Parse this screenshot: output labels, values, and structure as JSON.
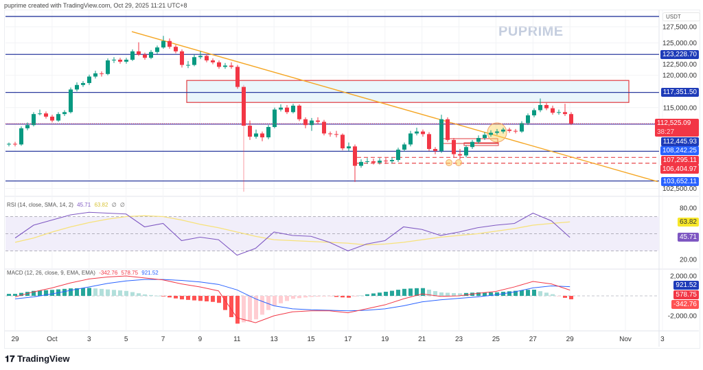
{
  "header": {
    "caption": "puprime created with TradingView.com, Oct 29, 2025 11:21 UTC+8"
  },
  "watermark": "PUPRIME",
  "footer": {
    "logo_text": "TradingView"
  },
  "price_axis": {
    "currency": "USDT",
    "ticks": [
      "127,500.00",
      "125,000.00",
      "122,500.00",
      "120,000.00",
      "115,000.00",
      "102,500.00"
    ]
  },
  "colors": {
    "up": "#089981",
    "down": "#f23645",
    "level": "#2a3a9e",
    "trendline": "#f5a623",
    "zone_border": "#e0393e",
    "zone_fill": "#eaf6fb",
    "rsi": "#7e57c2",
    "rsi_ma": "#f7e27a",
    "macd": "#f23645",
    "signal": "#2962ff"
  },
  "chart_data": [
    {
      "type": "candlestick",
      "title": "",
      "y_unit": "USDT",
      "ylim": [
        101500,
        129500
      ],
      "x_tick_labels": [
        "29",
        "Oct",
        "3",
        "5",
        "7",
        "9",
        "11",
        "13",
        "15",
        "17",
        "19",
        "21",
        "23",
        "25",
        "27",
        "29",
        "Nov",
        "3"
      ],
      "y_tick_labels": [
        "127,500.00",
        "125,000.00",
        "122,500.00",
        "120,000.00",
        "115,000.00",
        "102,500.00"
      ],
      "grid": true,
      "candles_ohlc": [
        [
          109300,
          109600,
          109000,
          109400
        ],
        [
          109400,
          109700,
          109000,
          109300
        ],
        [
          109300,
          112100,
          109100,
          111800
        ],
        [
          111800,
          112700,
          111500,
          112300
        ],
        [
          112300,
          114300,
          112100,
          114000
        ],
        [
          114000,
          114700,
          113800,
          114100
        ],
        [
          114100,
          114400,
          113300,
          113600
        ],
        [
          113600,
          113900,
          112700,
          113000
        ],
        [
          113000,
          114300,
          112800,
          114000
        ],
        [
          114000,
          114600,
          113700,
          114300
        ],
        [
          114300,
          118100,
          114100,
          117800
        ],
        [
          117800,
          118900,
          117500,
          118500
        ],
        [
          118500,
          119100,
          118200,
          118800
        ],
        [
          118800,
          120100,
          118500,
          119800
        ],
        [
          119800,
          120700,
          119500,
          120300
        ],
        [
          120300,
          120600,
          119800,
          120200
        ],
        [
          120200,
          122600,
          120000,
          122300
        ],
        [
          122300,
          122800,
          121900,
          122400
        ],
        [
          122400,
          122700,
          121800,
          122100
        ],
        [
          122100,
          122700,
          121800,
          122400
        ],
        [
          122400,
          124000,
          122200,
          123700
        ],
        [
          123700,
          125100,
          123000,
          123200
        ],
        [
          123200,
          123500,
          122400,
          122700
        ],
        [
          122700,
          123900,
          122500,
          123600
        ],
        [
          123600,
          124600,
          123300,
          124300
        ],
        [
          124300,
          126100,
          124100,
          125300
        ],
        [
          125300,
          125700,
          124100,
          124400
        ],
        [
          124400,
          124700,
          123400,
          123700
        ],
        [
          123700,
          124000,
          121200,
          121600
        ],
        [
          121600,
          122200,
          121100,
          121600
        ],
        [
          121600,
          123200,
          121400,
          122800
        ],
        [
          122800,
          123700,
          122500,
          123000
        ],
        [
          123000,
          123300,
          122000,
          122300
        ],
        [
          122300,
          122600,
          121700,
          122000
        ],
        [
          122000,
          122300,
          121000,
          121300
        ],
        [
          121300,
          121900,
          121000,
          121500
        ],
        [
          121500,
          122000,
          121000,
          121300
        ],
        [
          121300,
          121600,
          117900,
          118200
        ],
        [
          118200,
          118500,
          102000,
          112200
        ],
        [
          112200,
          113000,
          110000,
          110500
        ],
        [
          110500,
          111600,
          110200,
          111000
        ],
        [
          111000,
          111300,
          109800,
          110400
        ],
        [
          110400,
          112300,
          110100,
          112000
        ],
        [
          112000,
          115000,
          111800,
          114700
        ],
        [
          114700,
          115500,
          114400,
          115000
        ],
        [
          115000,
          115400,
          114000,
          114300
        ],
        [
          114300,
          115600,
          114100,
          115300
        ],
        [
          115300,
          115500,
          112900,
          113200
        ],
        [
          113200,
          113500,
          111800,
          112300
        ],
        [
          112300,
          113400,
          111400,
          113000
        ],
        [
          113000,
          113500,
          112500,
          112800
        ],
        [
          112800,
          113100,
          110700,
          111000
        ],
        [
          111000,
          111300,
          110500,
          110900
        ],
        [
          110900,
          111400,
          110400,
          110800
        ],
        [
          110800,
          111000,
          108400,
          108700
        ],
        [
          108700,
          109600,
          108300,
          109000
        ],
        [
          109000,
          109300,
          103500,
          106000
        ],
        [
          106000,
          107000,
          105700,
          106600
        ],
        [
          106600,
          107200,
          106300,
          106700
        ],
        [
          106700,
          107100,
          106200,
          106500
        ],
        [
          106500,
          107200,
          106200,
          106800
        ],
        [
          106800,
          107200,
          106300,
          106700
        ],
        [
          106700,
          107300,
          106400,
          106900
        ],
        [
          106900,
          108800,
          106600,
          108500
        ],
        [
          108500,
          109600,
          108200,
          109300
        ],
        [
          109300,
          111400,
          109000,
          111000
        ],
        [
          111000,
          111900,
          110700,
          111300
        ],
        [
          111300,
          111600,
          110500,
          110900
        ],
        [
          110900,
          111200,
          108300,
          108600
        ],
        [
          108600,
          108900,
          107800,
          108300
        ],
        [
          108300,
          113900,
          108000,
          113200
        ],
        [
          113200,
          113500,
          109700,
          110000
        ],
        [
          110000,
          110300,
          107300,
          107800
        ],
        [
          107800,
          108600,
          107000,
          107600
        ],
        [
          107600,
          109200,
          107300,
          108900
        ],
        [
          108900,
          110000,
          108600,
          109700
        ],
        [
          109700,
          110700,
          109400,
          110300
        ],
        [
          110300,
          111200,
          110000,
          110800
        ],
        [
          110800,
          111500,
          110500,
          111100
        ],
        [
          111100,
          111700,
          110800,
          111300
        ],
        [
          111300,
          111900,
          111000,
          111600
        ],
        [
          111600,
          111900,
          111100,
          111400
        ],
        [
          111400,
          111700,
          111000,
          111300
        ],
        [
          111300,
          112900,
          111100,
          112600
        ],
        [
          112600,
          114100,
          112300,
          113800
        ],
        [
          113800,
          114900,
          113500,
          114600
        ],
        [
          114600,
          116400,
          114300,
          115400
        ],
        [
          115400,
          115700,
          114600,
          114900
        ],
        [
          114900,
          115300,
          113900,
          114200
        ],
        [
          114200,
          114700,
          113900,
          114300
        ],
        [
          114300,
          115600,
          113700,
          114000
        ],
        [
          114000,
          114300,
          112300,
          112525.09
        ]
      ],
      "horizontal_levels": [
        {
          "price": 129100,
          "label": ""
        },
        {
          "price": 123228.7,
          "label": "123,228.70"
        },
        {
          "price": 117351.5,
          "label": "117,351.50"
        },
        {
          "price": 112445.93,
          "label": "112,445.93"
        },
        {
          "price": 108242.25,
          "label": "108,242.25"
        },
        {
          "price": 103652.11,
          "label": "103,652.11"
        }
      ],
      "dashed_levels": [
        {
          "price": 107295.11,
          "label": "107,295.11"
        },
        {
          "price": 106404.97,
          "label": "106,404.97"
        }
      ],
      "last_price": {
        "value": "112,525.09",
        "countdown": "38:27"
      },
      "resistance_zone": {
        "from_price": 115800,
        "to_price": 119200,
        "start_date": "Oct 9",
        "end_date": "Oct 31"
      },
      "trendline": {
        "start": {
          "date": "Oct 5",
          "price": 126750
        },
        "end": {
          "date": "Nov 3",
          "price": 103550
        }
      }
    },
    {
      "type": "line",
      "title": "RSI (14, close, SMA, 14, 2)",
      "legend_values": [
        "45.71",
        "63.82",
        "∅",
        "∅"
      ],
      "ylim": [
        10,
        90
      ],
      "y_tick_labels": [
        "80.00",
        "20.00"
      ],
      "band": [
        30,
        70
      ],
      "series": [
        {
          "name": "RSI",
          "last_label": "45.71",
          "values": [
            45,
            60,
            66,
            72,
            75,
            74,
            73,
            58,
            62,
            42,
            46,
            43,
            25,
            33,
            52,
            48,
            47,
            40,
            30,
            38,
            42,
            58,
            55,
            48,
            52,
            57,
            60,
            62,
            74,
            65,
            45.71
          ]
        },
        {
          "name": "RSI-based MA",
          "last_label": "63.82",
          "values": [
            40,
            45,
            52,
            58,
            63,
            67,
            70,
            71,
            70,
            66,
            61,
            57,
            52,
            47,
            43,
            42,
            41,
            40,
            39,
            37,
            38,
            40,
            43,
            46,
            48,
            50,
            53,
            56,
            60,
            62,
            63.82
          ]
        }
      ]
    },
    {
      "type": "line",
      "title": "MACD (12, 26, close, 9, EMA, EMA)",
      "legend_values": [
        "-342.76",
        "578.75",
        "921.52"
      ],
      "ylim": [
        -3000,
        2800
      ],
      "y_tick_labels": [
        "2,000.00",
        "-2,000.00"
      ],
      "series": [
        {
          "name": "Histogram",
          "last_label": "-342.76"
        },
        {
          "name": "MACD",
          "last_label": "578.75",
          "values": [
            -100,
            400,
            800,
            1300,
            1700,
            1900,
            2000,
            1800,
            1600,
            1200,
            900,
            500,
            -2200,
            -2700,
            -2000,
            -1600,
            -1500,
            -1500,
            -1700,
            -1300,
            -900,
            -300,
            200,
            -50,
            0,
            250,
            450,
            900,
            1450,
            1200,
            578.75
          ]
        },
        {
          "name": "Signal",
          "last_label": "921.52",
          "values": [
            -300,
            -100,
            200,
            550,
            900,
            1250,
            1500,
            1650,
            1650,
            1550,
            1400,
            1150,
            600,
            -300,
            -1000,
            -1300,
            -1400,
            -1450,
            -1500,
            -1450,
            -1300,
            -1000,
            -600,
            -400,
            -250,
            -100,
            100,
            400,
            800,
            1000,
            921.52
          ]
        }
      ]
    }
  ]
}
